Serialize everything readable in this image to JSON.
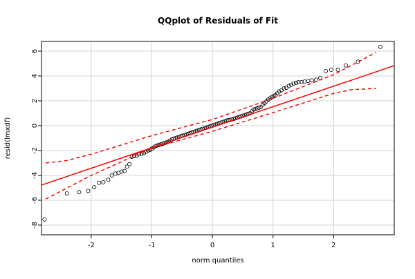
{
  "chart_data": {
    "type": "scatter",
    "title": "QQplot of Residuals of Fit",
    "x_label": "norm quantiles",
    "y_label": "resid(lmxdf)",
    "xlim": [
      -2.82,
      3.0
    ],
    "ylim": [
      -8.78,
      6.78
    ],
    "xticks": [
      -2,
      -1,
      0,
      1,
      2
    ],
    "yticks": [
      -8,
      -6,
      -4,
      -2,
      0,
      2,
      4,
      6
    ],
    "grid": true,
    "points": {
      "color": "#000000",
      "x": [
        -2.77,
        -2.4,
        -2.2,
        -2.05,
        -1.95,
        -1.87,
        -1.8,
        -1.72,
        -1.66,
        -1.6,
        -1.55,
        -1.5,
        -1.45,
        -1.41,
        -1.37,
        -1.33,
        -1.29,
        -1.25,
        -1.21,
        -1.17,
        -1.13,
        -1.1,
        -1.06,
        -1.03,
        -1.0,
        -0.97,
        -0.94,
        -0.91,
        -0.88,
        -0.85,
        -0.82,
        -0.79,
        -0.76,
        -0.73,
        -0.7,
        -0.67,
        -0.64,
        -0.61,
        -0.58,
        -0.55,
        -0.52,
        -0.49,
        -0.46,
        -0.43,
        -0.4,
        -0.37,
        -0.34,
        -0.31,
        -0.28,
        -0.25,
        -0.22,
        -0.19,
        -0.16,
        -0.13,
        -0.1,
        -0.07,
        -0.04,
        -0.01,
        0.02,
        0.05,
        0.08,
        0.11,
        0.14,
        0.17,
        0.2,
        0.23,
        0.26,
        0.29,
        0.32,
        0.35,
        0.38,
        0.41,
        0.44,
        0.47,
        0.5,
        0.53,
        0.56,
        0.59,
        0.62,
        0.65,
        0.68,
        0.71,
        0.74,
        0.77,
        0.8,
        0.83,
        0.86,
        0.89,
        0.92,
        0.95,
        0.98,
        1.01,
        1.04,
        1.07,
        1.1,
        1.14,
        1.18,
        1.22,
        1.26,
        1.3,
        1.34,
        1.38,
        1.42,
        1.47,
        1.52,
        1.58,
        1.64,
        1.71,
        1.78,
        1.87,
        1.96,
        2.07,
        2.2,
        2.4,
        2.77
      ],
      "y": [
        -7.55,
        -5.45,
        -5.35,
        -5.25,
        -4.95,
        -4.6,
        -4.55,
        -4.35,
        -4.0,
        -3.85,
        -3.8,
        -3.7,
        -3.65,
        -3.3,
        -3.1,
        -2.5,
        -2.45,
        -2.4,
        -2.3,
        -2.25,
        -2.2,
        -2.1,
        -2.0,
        -1.95,
        -1.85,
        -1.75,
        -1.65,
        -1.6,
        -1.55,
        -1.5,
        -1.45,
        -1.4,
        -1.35,
        -1.3,
        -1.2,
        -1.1,
        -1.05,
        -1.0,
        -0.95,
        -0.9,
        -0.85,
        -0.8,
        -0.75,
        -0.7,
        -0.65,
        -0.6,
        -0.55,
        -0.5,
        -0.45,
        -0.4,
        -0.35,
        -0.3,
        -0.25,
        -0.2,
        -0.15,
        -0.1,
        -0.05,
        0.0,
        0.05,
        0.1,
        0.15,
        0.2,
        0.25,
        0.3,
        0.35,
        0.4,
        0.45,
        0.45,
        0.5,
        0.55,
        0.6,
        0.65,
        0.7,
        0.75,
        0.8,
        0.85,
        0.9,
        0.95,
        1.0,
        1.15,
        1.3,
        1.35,
        1.4,
        1.45,
        1.5,
        1.7,
        1.8,
        1.95,
        2.1,
        2.2,
        2.3,
        2.4,
        2.45,
        2.6,
        2.75,
        2.85,
        3.0,
        3.05,
        3.2,
        3.3,
        3.4,
        3.45,
        3.5,
        3.5,
        3.55,
        3.6,
        3.65,
        3.7,
        3.85,
        4.4,
        4.5,
        4.5,
        4.85,
        5.15,
        6.35
      ]
    },
    "lines": [
      {
        "color": "#ff0000",
        "dashed": false,
        "x": [
          -2.82,
          3.0
        ],
        "y": [
          -4.78,
          4.83
        ]
      },
      {
        "color": "#ff0000",
        "dashed": true,
        "x": [
          -2.75,
          -2.4,
          -2.0,
          -1.0,
          0,
          1,
          2,
          2.7
        ],
        "y": [
          -3.0,
          -2.8,
          -2.3,
          -0.8,
          0.5,
          2.2,
          4.1,
          5.9
        ]
      },
      {
        "color": "#ff0000",
        "dashed": true,
        "x": [
          -2.75,
          -2.0,
          -1.0,
          0,
          1,
          2,
          2.3,
          2.7
        ],
        "y": [
          -5.9,
          -4.0,
          -1.8,
          -0.45,
          1.05,
          2.6,
          2.9,
          3.0
        ]
      }
    ]
  }
}
